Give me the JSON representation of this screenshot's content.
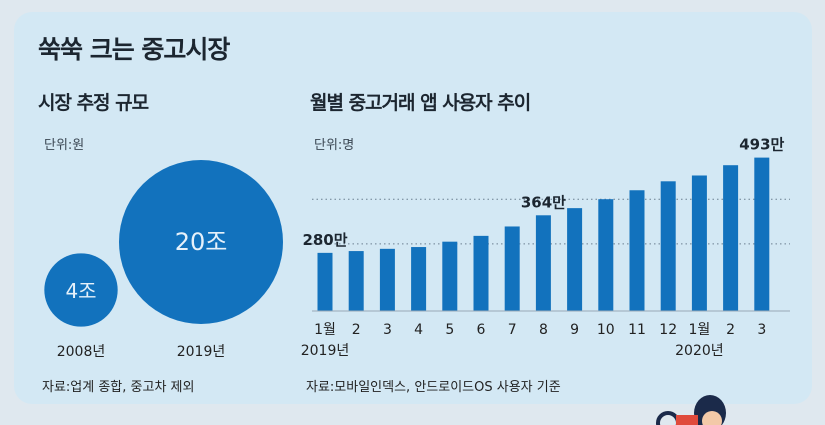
{
  "title": "쑥쑥 크는 중고시장",
  "left": {
    "section_title": "시장 추정 규모",
    "unit": "단위:원",
    "source": "자료:업계 종합, 중고차 제외"
  },
  "right": {
    "section_title": "월별 중고거래 앱 사용자 추이",
    "unit": "단위:명",
    "source": "자료:모바일인덱스, 안드로이드OS 사용자 기준",
    "year_labels": [
      "2019년",
      "2020년"
    ]
  },
  "colors": {
    "bar": "#1272bd",
    "background": "#d3e8f4",
    "circle_text": "#e6f1fa"
  },
  "chart_data": [
    {
      "type": "bubble",
      "title": "시장 추정 규모",
      "unit": "단위:원",
      "categories": [
        "2008년",
        "2019년"
      ],
      "values": [
        4,
        20
      ],
      "labels": [
        "4조",
        "20조"
      ]
    },
    {
      "type": "bar",
      "title": "월별 중고거래 앱 사용자 추이",
      "unit": "단위:명",
      "categories": [
        "1월",
        "2",
        "3",
        "4",
        "5",
        "6",
        "7",
        "8",
        "9",
        "10",
        "11",
        "12",
        "1월",
        "2",
        "3"
      ],
      "values": [
        280,
        284,
        289,
        293,
        305,
        318,
        339,
        364,
        380,
        400,
        420,
        440,
        453,
        476,
        493
      ],
      "data_labels": {
        "0": "280만",
        "7": "364만",
        "14": "493만"
      },
      "ylim": [
        150,
        510
      ],
      "grid": true
    }
  ]
}
